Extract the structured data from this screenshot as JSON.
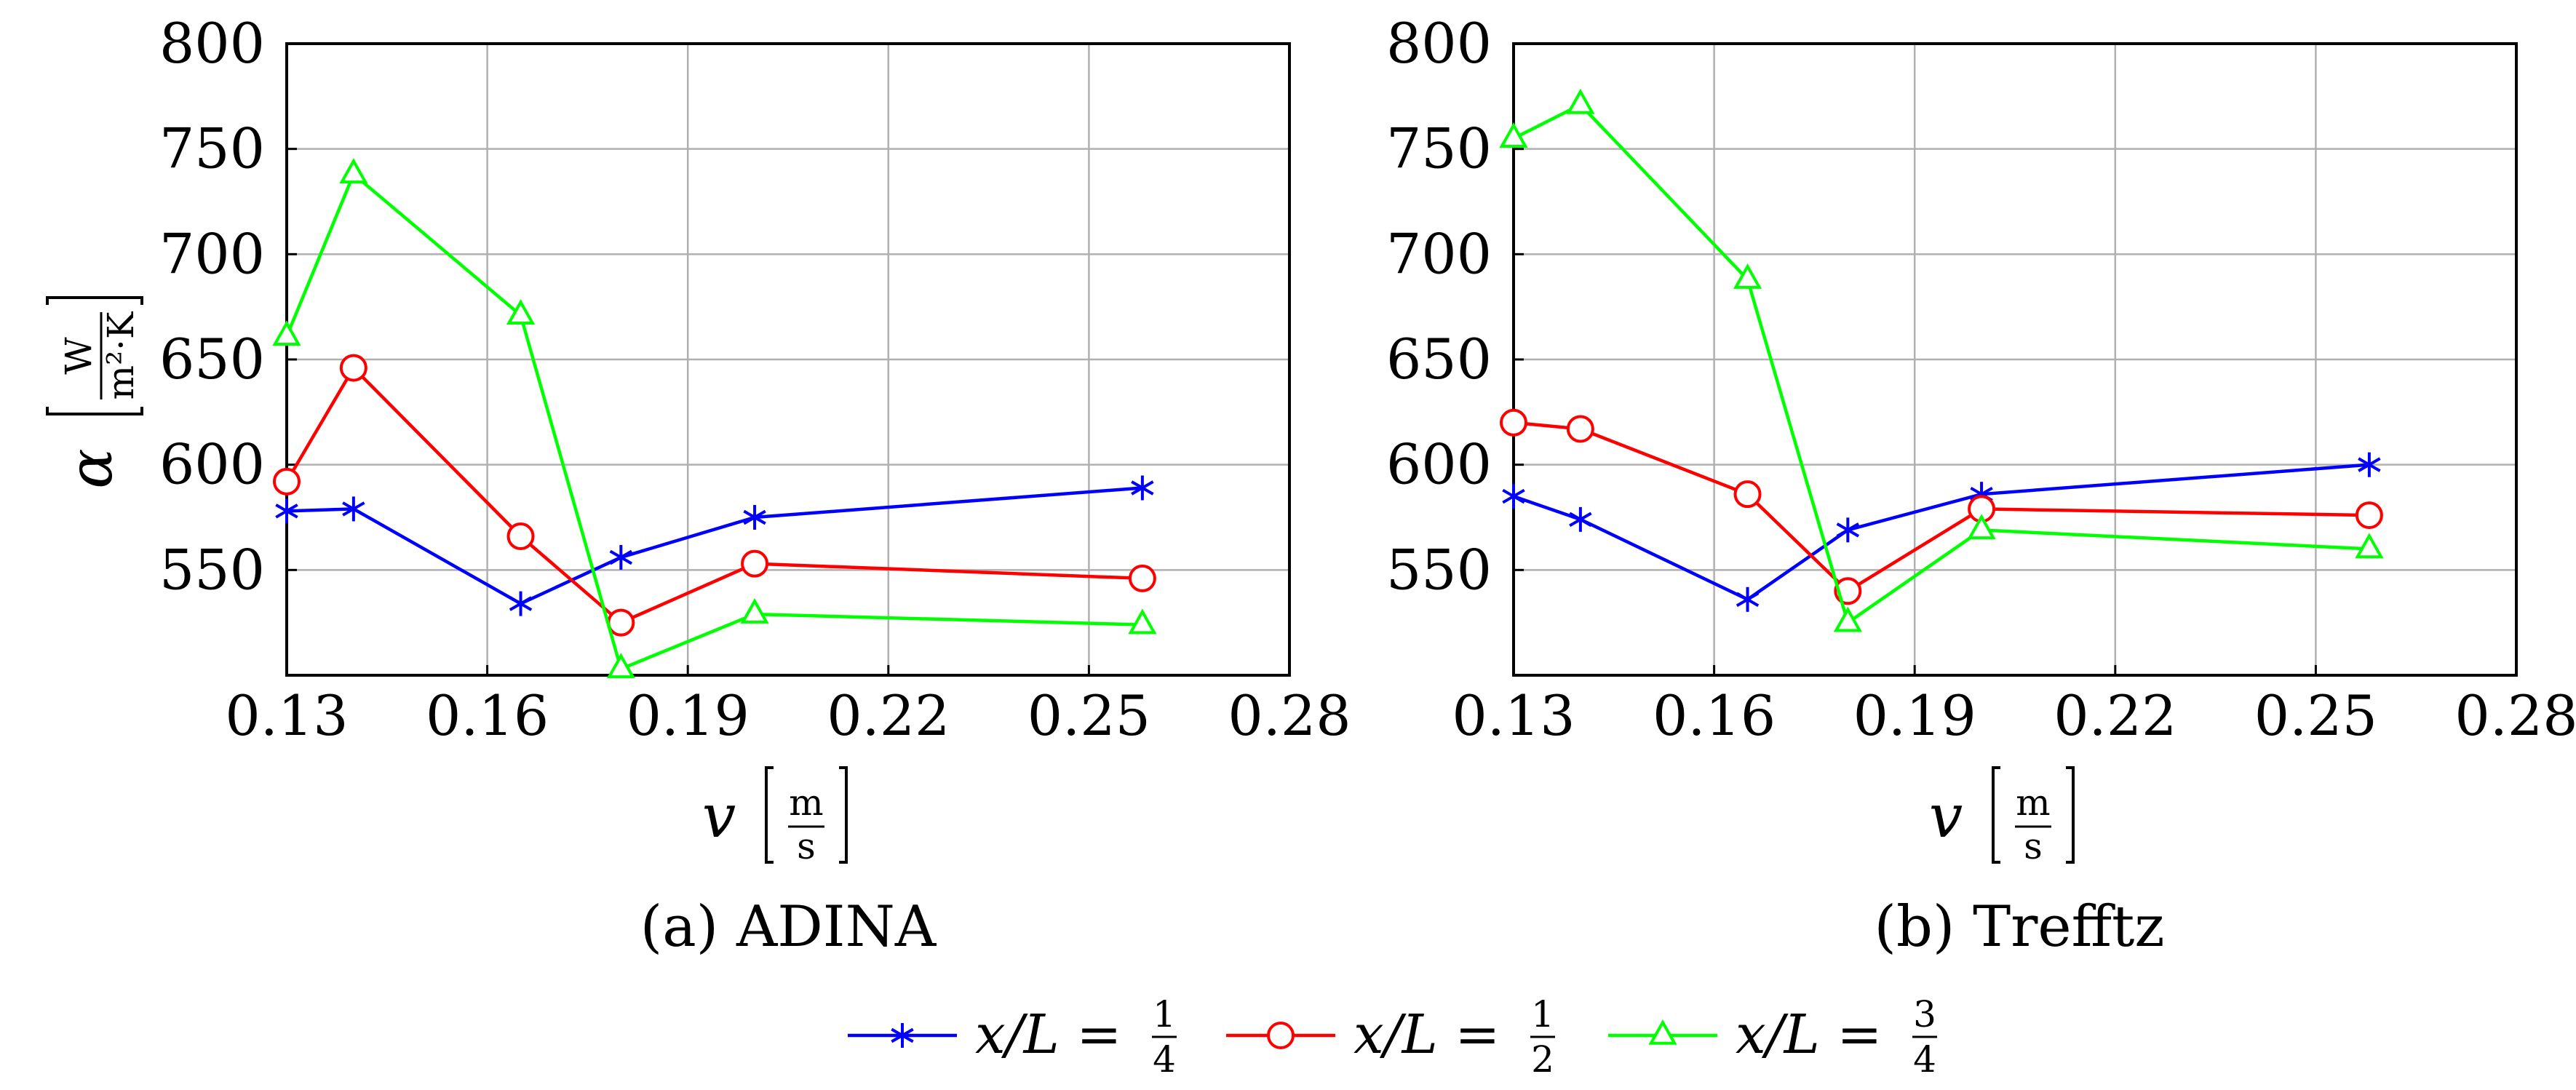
{
  "chart_data": [
    {
      "type": "line",
      "caption": "(a) ADINA",
      "xlabel_var": "v",
      "xlabel_unit_num": "m",
      "xlabel_unit_den": "s",
      "ylabel_var": "α",
      "ylabel_unit_num": "W",
      "ylabel_unit_den": "m²·K",
      "xlim": [
        0.13,
        0.28
      ],
      "ylim": [
        500,
        800
      ],
      "xticks": [
        0.13,
        0.16,
        0.19,
        0.22,
        0.25,
        0.28
      ],
      "xtick_labels": [
        "0.13",
        "0.16",
        "0.19",
        "0.22",
        "0.25",
        "0.28"
      ],
      "yticks": [
        550,
        600,
        650,
        700,
        750,
        800
      ],
      "ytick_labels": [
        "550",
        "600",
        "650",
        "700",
        "750",
        "800"
      ],
      "grid": true,
      "series": [
        {
          "name": "x/L = 1/4",
          "color": "#0000ff",
          "marker": "star",
          "x": [
            0.13,
            0.14,
            0.165,
            0.18,
            0.2,
            0.258
          ],
          "y": [
            578,
            579,
            534,
            556,
            575,
            589
          ]
        },
        {
          "name": "x/L = 1/2",
          "color": "#ff0000",
          "marker": "circle",
          "x": [
            0.13,
            0.14,
            0.165,
            0.18,
            0.2,
            0.258
          ],
          "y": [
            592,
            646,
            566,
            525,
            553,
            546
          ]
        },
        {
          "name": "x/L = 3/4",
          "color": "#00ff00",
          "marker": "triangle",
          "x": [
            0.13,
            0.14,
            0.165,
            0.18,
            0.2,
            0.258
          ],
          "y": [
            661,
            738,
            671,
            503,
            529,
            524
          ]
        }
      ]
    },
    {
      "type": "line",
      "caption": "(b) Trefftz",
      "xlabel_var": "v",
      "xlabel_unit_num": "m",
      "xlabel_unit_den": "s",
      "xlim": [
        0.13,
        0.28
      ],
      "ylim": [
        500,
        800
      ],
      "xticks": [
        0.13,
        0.16,
        0.19,
        0.22,
        0.25,
        0.28
      ],
      "xtick_labels": [
        "0.13",
        "0.16",
        "0.19",
        "0.22",
        "0.25",
        "0.28"
      ],
      "yticks": [
        550,
        600,
        650,
        700,
        750,
        800
      ],
      "ytick_labels": [
        "550",
        "600",
        "650",
        "700",
        "750",
        "800"
      ],
      "grid": true,
      "series": [
        {
          "name": "x/L = 1/4",
          "color": "#0000ff",
          "marker": "star",
          "x": [
            0.13,
            0.14,
            0.165,
            0.18,
            0.2,
            0.258
          ],
          "y": [
            585,
            574,
            536,
            569,
            586,
            600
          ]
        },
        {
          "name": "x/L = 1/2",
          "color": "#ff0000",
          "marker": "circle",
          "x": [
            0.13,
            0.14,
            0.165,
            0.18,
            0.2,
            0.258
          ],
          "y": [
            620,
            617,
            586,
            540,
            579,
            576
          ]
        },
        {
          "name": "x/L = 3/4",
          "color": "#00ff00",
          "marker": "triangle",
          "x": [
            0.13,
            0.14,
            0.165,
            0.18,
            0.2,
            0.258
          ],
          "y": [
            755,
            771,
            688,
            525,
            569,
            560
          ]
        }
      ]
    }
  ],
  "legend": [
    {
      "var": "x/L =",
      "num": "1",
      "den": "4",
      "color": "#0000ff",
      "marker": "star"
    },
    {
      "var": "x/L =",
      "num": "1",
      "den": "2",
      "color": "#ff0000",
      "marker": "circle"
    },
    {
      "var": "x/L =",
      "num": "3",
      "den": "4",
      "color": "#00ff00",
      "marker": "triangle"
    }
  ]
}
